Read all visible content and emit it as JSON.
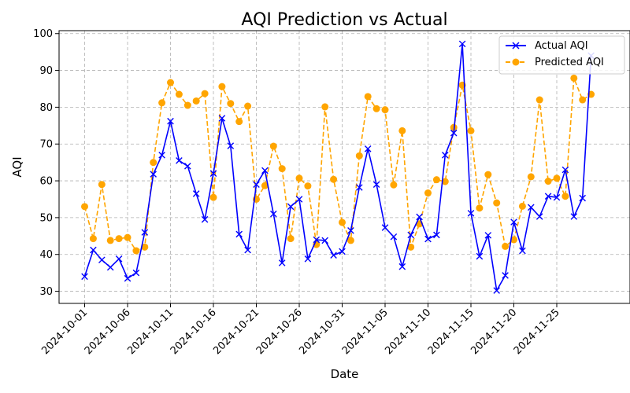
{
  "chart_data": {
    "type": "line",
    "title": "AQI Prediction vs Actual",
    "xlabel": "Date",
    "ylabel": "AQI",
    "ylim": [
      26.7,
      100.8
    ],
    "y_ticks": [
      30,
      40,
      50,
      60,
      70,
      80,
      90,
      100
    ],
    "x_tick_labels": [
      "2024-10-01",
      "2024-10-06",
      "2024-10-11",
      "2024-10-16",
      "2024-10-21",
      "2024-10-26",
      "2024-10-31",
      "2024-11-05",
      "2024-11-10",
      "2024-11-15",
      "2024-11-20",
      "2024-11-25"
    ],
    "grid": true,
    "legend_position": "top-right",
    "x_start": "2024-10-01",
    "series": [
      {
        "name": "Actual AQI",
        "color": "#0000ff",
        "linestyle": "solid",
        "marker": "x",
        "values": [
          34,
          41.2,
          38.5,
          36.5,
          38.8,
          33.5,
          35,
          46,
          61.8,
          67,
          76.2,
          65.5,
          64,
          56.5,
          49.5,
          62,
          77,
          69.5,
          45.5,
          41.2,
          59,
          62.8,
          51,
          37.7,
          53,
          55,
          38.8,
          44,
          43.8,
          39.8,
          40.8,
          46.5,
          58.2,
          68.7,
          59,
          47.3,
          44.8,
          36.7,
          45.3,
          50.2,
          44.2,
          45.3,
          67,
          73,
          97.2,
          51.2,
          39.5,
          45.2,
          30.2,
          34.3,
          48.8,
          41,
          52.8,
          50.3,
          55.8,
          55.5,
          63,
          50.3,
          55.3,
          94
        ]
      },
      {
        "name": "Predicted AQI",
        "color": "#ffa500",
        "linestyle": "dashed",
        "marker": "o",
        "values": [
          53,
          44.3,
          59,
          43.8,
          44.3,
          44.6,
          41,
          42,
          65,
          81.2,
          86.7,
          83.5,
          80.5,
          81.7,
          83.7,
          55.5,
          85.6,
          81,
          76.1,
          80.3,
          55,
          58.7,
          69.4,
          63.3,
          44.3,
          60.7,
          58.6,
          42.7,
          80.1,
          60.4,
          48.7,
          43.8,
          66.8,
          82.9,
          79.6,
          79.3,
          58.9,
          73.6,
          42,
          48.3,
          56.7,
          60.3,
          59.8,
          74.5,
          86,
          73.6,
          52.6,
          61.7,
          54,
          42.2,
          44,
          53.1,
          61.1,
          82,
          59.9,
          60.7,
          55.8,
          87.9,
          82,
          83.5
        ]
      }
    ]
  }
}
